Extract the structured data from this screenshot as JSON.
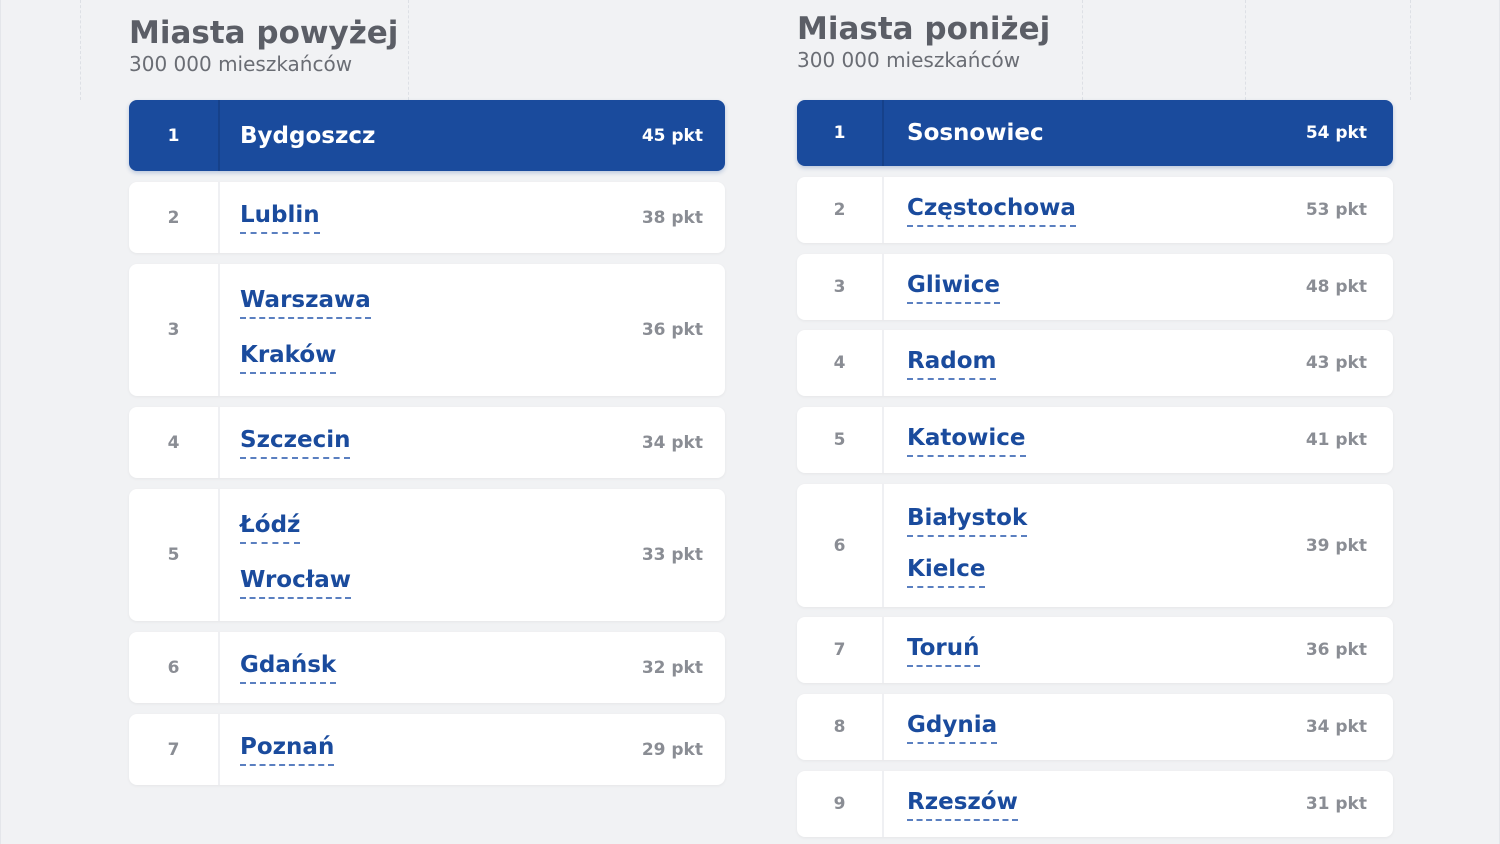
{
  "left": {
    "title": "Miasta powyżej",
    "subtitle": "300 000 mieszkańców",
    "rows": [
      {
        "rank": "1",
        "cities": [
          "Bydgoszcz"
        ],
        "points": "45 pkt"
      },
      {
        "rank": "2",
        "cities": [
          "Lublin"
        ],
        "points": "38 pkt"
      },
      {
        "rank": "3",
        "cities": [
          "Warszawa",
          "Kraków"
        ],
        "points": "36 pkt"
      },
      {
        "rank": "4",
        "cities": [
          "Szczecin"
        ],
        "points": "34 pkt"
      },
      {
        "rank": "5",
        "cities": [
          "Łódź",
          "Wrocław"
        ],
        "points": "33 pkt"
      },
      {
        "rank": "6",
        "cities": [
          "Gdańsk"
        ],
        "points": "32 pkt"
      },
      {
        "rank": "7",
        "cities": [
          "Poznań"
        ],
        "points": "29 pkt"
      }
    ]
  },
  "right": {
    "title": "Miasta poniżej",
    "subtitle": "300 000 mieszkańców",
    "rows": [
      {
        "rank": "1",
        "cities": [
          "Sosnowiec"
        ],
        "points": "54 pkt"
      },
      {
        "rank": "2",
        "cities": [
          "Częstochowa"
        ],
        "points": "53 pkt"
      },
      {
        "rank": "3",
        "cities": [
          "Gliwice"
        ],
        "points": "48 pkt"
      },
      {
        "rank": "4",
        "cities": [
          "Radom"
        ],
        "points": "43 pkt"
      },
      {
        "rank": "5",
        "cities": [
          "Katowice"
        ],
        "points": "41 pkt"
      },
      {
        "rank": "6",
        "cities": [
          "Białystok",
          "Kielce"
        ],
        "points": "39 pkt"
      },
      {
        "rank": "7",
        "cities": [
          "Toruń"
        ],
        "points": "36 pkt"
      },
      {
        "rank": "8",
        "cities": [
          "Gdynia"
        ],
        "points": "34 pkt"
      },
      {
        "rank": "9",
        "cities": [
          "Rzeszów"
        ],
        "points": "31 pkt"
      }
    ]
  },
  "colors": {
    "accent": "#1a4b9d",
    "background": "#f1f2f4",
    "card": "#ffffff",
    "muted_text": "#8a8d94"
  }
}
